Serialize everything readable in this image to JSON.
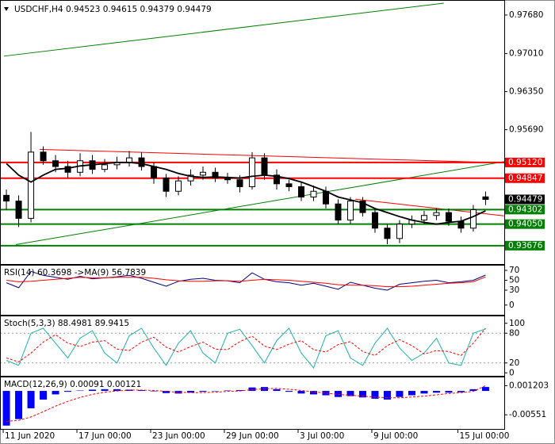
{
  "chart_data": [
    {
      "type": "candlestick",
      "title": "USDCHF,H4",
      "categories": [
        "11 Jun 2020",
        null,
        null,
        null,
        null,
        null,
        "17 Jun 00:00",
        null,
        null,
        null,
        null,
        null,
        "23 Jun 00:00",
        null,
        null,
        null,
        null,
        null,
        "29 Jun 00:00",
        null,
        null,
        null,
        null,
        null,
        "3 Jul 00:00",
        null,
        null,
        null,
        null,
        null,
        "9 Jul 00:00",
        null,
        null,
        null,
        null,
        null,
        null,
        "15 Jul 00:00",
        null,
        null
      ],
      "open": [
        0.9455,
        0.9445,
        0.9415,
        0.953,
        0.9515,
        0.9505,
        0.9495,
        0.9515,
        0.95,
        0.9508,
        0.9512,
        0.952,
        0.9505,
        0.9485,
        0.9462,
        0.948,
        0.949,
        0.9495,
        0.9485,
        0.9482,
        0.947,
        0.952,
        0.949,
        0.9475,
        0.947,
        0.9452,
        0.9462,
        0.944,
        0.9412,
        0.9445,
        0.9425,
        0.9398,
        0.938,
        0.9405,
        0.9412,
        0.942,
        0.9425,
        0.941,
        0.9398,
        0.94523
      ],
      "high": [
        0.9465,
        0.9455,
        0.9565,
        0.954,
        0.9525,
        0.9515,
        0.9528,
        0.9525,
        0.9518,
        0.9522,
        0.9532,
        0.953,
        0.9512,
        0.9492,
        0.9488,
        0.95,
        0.9505,
        0.9503,
        0.9494,
        0.949,
        0.953,
        0.9528,
        0.95,
        0.9482,
        0.9478,
        0.9472,
        0.947,
        0.9448,
        0.9452,
        0.9452,
        0.9432,
        0.9405,
        0.9412,
        0.942,
        0.9428,
        0.9432,
        0.9432,
        0.9418,
        0.9438,
        0.94615
      ],
      "low": [
        0.943,
        0.94,
        0.9408,
        0.9508,
        0.9495,
        0.9485,
        0.9488,
        0.9492,
        0.9495,
        0.95,
        0.9505,
        0.9498,
        0.9475,
        0.9452,
        0.9455,
        0.9472,
        0.9482,
        0.9478,
        0.9475,
        0.946,
        0.9465,
        0.9482,
        0.9465,
        0.9462,
        0.9445,
        0.9445,
        0.9432,
        0.9405,
        0.9405,
        0.9418,
        0.939,
        0.937,
        0.9372,
        0.9398,
        0.9405,
        0.9412,
        0.9402,
        0.939,
        0.9392,
        0.94379
      ],
      "close": [
        0.9445,
        0.9415,
        0.953,
        0.9515,
        0.9505,
        0.9495,
        0.9515,
        0.95,
        0.9508,
        0.9512,
        0.952,
        0.9505,
        0.9485,
        0.9462,
        0.948,
        0.949,
        0.9495,
        0.9485,
        0.9482,
        0.947,
        0.952,
        0.949,
        0.9475,
        0.947,
        0.9452,
        0.9462,
        0.944,
        0.9412,
        0.9445,
        0.9425,
        0.9398,
        0.938,
        0.9405,
        0.9412,
        0.942,
        0.9425,
        0.941,
        0.9398,
        0.943,
        0.94479
      ],
      "series": [
        {
          "color": "#000000",
          "style": "solid",
          "values": [
            0.951,
            0.949,
            0.9478,
            0.949,
            0.95,
            0.9502,
            0.9506,
            0.9508,
            0.951,
            0.9512,
            0.9512,
            0.951,
            0.9505,
            0.95,
            0.9493,
            0.9488,
            0.9486,
            0.9487,
            0.9486,
            0.9485,
            0.9488,
            0.949,
            0.9488,
            0.9484,
            0.9478,
            0.947,
            0.9462,
            0.9452,
            0.9447,
            0.9442,
            0.9432,
            0.9425,
            0.9418,
            0.9412,
            0.9408,
            0.9405,
            0.9408,
            0.941,
            0.9418,
            0.9428
          ]
        }
      ],
      "xlim": [
        -0.52,
        40.52
      ],
      "ylim": [
        0.93357,
        0.97927
      ],
      "yticks": [
        {
          "value": 0.9768,
          "label": "0.97680"
        },
        {
          "value": 0.9701,
          "label": "0.97010"
        },
        {
          "value": 0.9635,
          "label": "0.96350"
        },
        {
          "value": 0.9569,
          "label": "0.95690"
        }
      ],
      "levels": [
        {
          "value": 0.9512,
          "label": "0.95120",
          "color": "#ff0000"
        },
        {
          "value": 0.94847,
          "label": "0.94847",
          "color": "#ff0000"
        },
        {
          "value": 0.94302,
          "label": "0.94302",
          "color": "#008000"
        },
        {
          "value": 0.9405,
          "label": "0.94050",
          "color": "#008000"
        },
        {
          "value": 0.93676,
          "label": "0.93676",
          "color": "#008000"
        }
      ],
      "trendlines": [
        {
          "color": "#008000",
          "x": [
            -0.2,
            35.6
          ],
          "y": [
            0.96966,
            0.97886
          ]
        },
        {
          "color": "#008000",
          "x": [
            0.77,
            40.5
          ],
          "y": [
            0.93694,
            0.95134
          ]
        },
        {
          "color": "#ff0000",
          "x": [
            2.7,
            40.5
          ],
          "y": [
            0.95347,
            0.95114
          ]
        },
        {
          "color": "#ff0000",
          "x": [
            28.4,
            40.5
          ],
          "y": [
            0.94482,
            0.94194
          ]
        }
      ]
    },
    {
      "type": "line",
      "title": "RSI(14) 60.3698 ->MA(9) 56.7839",
      "series": [
        {
          "color": "#000080",
          "style": "solid",
          "values": [
            45,
            35,
            68,
            60,
            56,
            52,
            58,
            53,
            55,
            57,
            60,
            54,
            46,
            38,
            48,
            52,
            54,
            50,
            49,
            45,
            65,
            52,
            47,
            45,
            40,
            44,
            38,
            32,
            46,
            40,
            34,
            30,
            42,
            45,
            48,
            50,
            45,
            47,
            50,
            60.3698
          ]
        },
        {
          "color": "#ff0000",
          "style": "solid",
          "values": [
            50,
            47,
            48,
            50,
            52,
            54,
            56,
            55,
            55,
            56,
            56,
            56,
            54,
            51,
            49,
            48,
            48,
            49,
            49,
            48,
            50,
            52,
            51,
            50,
            48,
            46,
            44,
            41,
            40,
            40,
            39,
            37,
            37,
            38,
            40,
            42,
            44,
            45,
            47,
            56.7839
          ]
        }
      ],
      "ylim": [
        -19.6,
        79.6
      ],
      "yticks": [
        70,
        50,
        30,
        0
      ]
    },
    {
      "type": "line",
      "title": "Stoch(5,3,3) 88.4981 89.9415",
      "series": [
        {
          "color": "#20b2aa",
          "style": "solid",
          "values": [
            25,
            15,
            80,
            90,
            60,
            30,
            70,
            85,
            40,
            20,
            75,
            90,
            50,
            15,
            60,
            85,
            40,
            20,
            80,
            88,
            55,
            20,
            65,
            90,
            40,
            10,
            75,
            85,
            30,
            15,
            60,
            90,
            50,
            25,
            40,
            70,
            20,
            15,
            80,
            88.4981
          ]
        },
        {
          "color": "#ff0000",
          "style": "dashed",
          "values": [
            30,
            22,
            40,
            62,
            77,
            60,
            53,
            62,
            65,
            48,
            45,
            62,
            72,
            52,
            42,
            53,
            62,
            48,
            47,
            63,
            74,
            54,
            47,
            58,
            65,
            47,
            42,
            57,
            63,
            43,
            35,
            55,
            67,
            55,
            38,
            45,
            43,
            35,
            60,
            89.9415
          ]
        }
      ],
      "ylim": [
        -6,
        114
      ],
      "yticks": [
        100,
        80,
        20,
        0
      ],
      "levels": [
        {
          "value": 80
        },
        {
          "value": 20
        }
      ]
    },
    {
      "type": "line",
      "title": "MACD(12,26,9) 0.00091 0.00121",
      "series": [
        {
          "color": "#0000ff",
          "style": "histogram",
          "values": [
            -0.008,
            -0.0065,
            -0.004,
            -0.002,
            -0.0008,
            -0.0002,
            0.0001,
            0.0003,
            0.0004,
            0.0004,
            0.0003,
            0.0002,
            -0.0001,
            -0.0005,
            -0.0006,
            -0.0004,
            -0.0002,
            0,
            0.0001,
            0.0002,
            0.0008,
            0.0009,
            0.0004,
            -0.0002,
            -0.0006,
            -0.0008,
            -0.001,
            -0.0014,
            -0.0012,
            -0.0015,
            -0.0018,
            -0.002,
            -0.0014,
            -0.001,
            -0.0006,
            -0.0004,
            -0.0004,
            -0.0003,
            0.0004,
            0.00091
          ]
        },
        {
          "color": "#ff0000",
          "style": "dashed",
          "values": [
            -0.007,
            -0.0068,
            -0.006,
            -0.0048,
            -0.0035,
            -0.0024,
            -0.0015,
            -0.0008,
            -0.0003,
            0,
            0.0002,
            0.0002,
            0.0001,
            -0.0001,
            -0.0003,
            -0.0004,
            -0.0004,
            -0.0003,
            -0.0001,
            0,
            0.0003,
            0.0005,
            0.0006,
            0.0004,
            0.0001,
            -0.0002,
            -0.0005,
            -0.0008,
            -0.001,
            -0.0012,
            -0.0014,
            -0.0016,
            -0.0016,
            -0.0014,
            -0.0012,
            -0.0009,
            -0.0006,
            -0.0004,
            -0.0001,
            0.00121
          ]
        }
      ],
      "ylim": [
        -0.008771,
        0.003121
      ],
      "yticks": [
        0.001203,
        -0.00551
      ]
    }
  ]
}
